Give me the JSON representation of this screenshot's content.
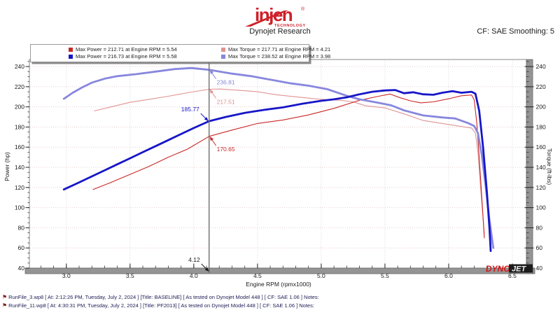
{
  "header": {
    "brand": "injen",
    "brand_reg": "®",
    "brand_sub": "TECHNOLOGY",
    "brand_color": "#ce2129",
    "subtitle": "Dynojet Research",
    "cf_label": "CF: SAE Smoothing: 5"
  },
  "legend": {
    "items": [
      {
        "color": "#c82828",
        "label": "Max Power = 212.71 at Engine RPM = 5.54"
      },
      {
        "color": "#df9393",
        "label": "Max Torque = 217.71 at Engine RPM = 4.21"
      },
      {
        "color": "#1616c8",
        "label": "Max Power = 216.73 at Engine RPM = 5.58"
      },
      {
        "color": "#8787de",
        "label": "Max Torque = 238.52 at Engine RPM = 3.98"
      }
    ]
  },
  "chart_data": {
    "type": "line",
    "xlabel": "Engine RPM (rpmx1000)",
    "ylabel_left": "Power (hp)",
    "ylabel_right": "Torque (ft-lbs)",
    "xlim": [
      2.71,
      6.61
    ],
    "ylim": [
      40,
      247
    ],
    "x_ticks": [
      3.0,
      3.5,
      4.0,
      4.5,
      5.0,
      5.5,
      6.0,
      6.5
    ],
    "x_minor_step": 0.1,
    "y_ticks": [
      40,
      60,
      80,
      100,
      120,
      140,
      160,
      180,
      200,
      220,
      240
    ],
    "y_minor_step": 5,
    "grid": true,
    "legend_position": "top-left",
    "cursor_rpm": 4.12,
    "colors": {
      "grid_h": "#e8cfcf",
      "grid_v": "#d9d9d9",
      "axis_bar": "#949494",
      "cursor": "#6e6e6e"
    },
    "series": [
      {
        "id": "baseline-torque",
        "name": "Baseline Torque",
        "color": "#df9393",
        "width": 1.1,
        "points": [
          [
            3.22,
            196
          ],
          [
            3.35,
            200
          ],
          [
            3.5,
            204.5
          ],
          [
            3.65,
            207.5
          ],
          [
            3.8,
            210.5
          ],
          [
            3.95,
            214
          ],
          [
            4.12,
            217.5
          ],
          [
            4.21,
            217.7
          ],
          [
            4.35,
            216.5
          ],
          [
            4.5,
            215
          ],
          [
            4.65,
            212
          ],
          [
            4.8,
            210
          ],
          [
            5.0,
            207.5
          ],
          [
            5.15,
            206.5
          ],
          [
            5.25,
            205
          ],
          [
            5.35,
            201
          ],
          [
            5.5,
            199
          ],
          [
            5.65,
            193
          ],
          [
            5.8,
            186.5
          ],
          [
            5.95,
            183.5
          ],
          [
            6.1,
            180.5
          ],
          [
            6.18,
            179
          ],
          [
            6.21,
            174
          ],
          [
            6.23,
            155
          ],
          [
            6.25,
            120
          ],
          [
            6.27,
            90
          ],
          [
            6.28,
            74
          ]
        ]
      },
      {
        "id": "baseline-power",
        "name": "Baseline Power",
        "color": "#c82828",
        "width": 1.1,
        "points": [
          [
            3.21,
            118
          ],
          [
            3.35,
            125
          ],
          [
            3.5,
            133
          ],
          [
            3.65,
            141
          ],
          [
            3.8,
            150
          ],
          [
            3.95,
            158
          ],
          [
            4.12,
            170.7
          ],
          [
            4.3,
            177
          ],
          [
            4.5,
            183.5
          ],
          [
            4.7,
            187
          ],
          [
            4.9,
            192
          ],
          [
            5.1,
            198.5
          ],
          [
            5.3,
            206.5
          ],
          [
            5.45,
            210.5
          ],
          [
            5.54,
            212.7
          ],
          [
            5.62,
            209
          ],
          [
            5.7,
            206
          ],
          [
            5.78,
            204
          ],
          [
            5.88,
            205
          ],
          [
            6.0,
            208
          ],
          [
            6.1,
            211
          ],
          [
            6.18,
            211.8
          ],
          [
            6.2,
            207
          ],
          [
            6.22,
            185
          ],
          [
            6.24,
            150
          ],
          [
            6.26,
            110
          ],
          [
            6.28,
            70
          ]
        ]
      },
      {
        "id": "pf2013-torque",
        "name": "PF2013 Torque",
        "color": "#8787de",
        "width": 2.8,
        "points": [
          [
            2.98,
            208
          ],
          [
            3.05,
            214
          ],
          [
            3.12,
            219
          ],
          [
            3.2,
            224
          ],
          [
            3.3,
            228
          ],
          [
            3.4,
            230.5
          ],
          [
            3.55,
            232.5
          ],
          [
            3.7,
            235
          ],
          [
            3.85,
            237.5
          ],
          [
            3.98,
            238.5
          ],
          [
            4.12,
            236.8
          ],
          [
            4.3,
            233
          ],
          [
            4.45,
            230.5
          ],
          [
            4.6,
            227
          ],
          [
            4.75,
            223.5
          ],
          [
            4.9,
            221
          ],
          [
            5.05,
            217.5
          ],
          [
            5.2,
            211
          ],
          [
            5.3,
            207.5
          ],
          [
            5.45,
            204
          ],
          [
            5.55,
            201.5
          ],
          [
            5.65,
            196.5
          ],
          [
            5.8,
            191.5
          ],
          [
            5.95,
            189.5
          ],
          [
            6.05,
            188.5
          ],
          [
            6.15,
            184
          ],
          [
            6.2,
            181
          ],
          [
            6.23,
            174
          ],
          [
            6.26,
            152
          ],
          [
            6.29,
            122
          ],
          [
            6.32,
            88
          ],
          [
            6.35,
            60
          ]
        ]
      },
      {
        "id": "pf2013-power",
        "name": "PF2013 Power",
        "color": "#1616c8",
        "width": 2.8,
        "points": [
          [
            2.98,
            118
          ],
          [
            3.1,
            125
          ],
          [
            3.2,
            131
          ],
          [
            3.3,
            137
          ],
          [
            3.4,
            143
          ],
          [
            3.5,
            149
          ],
          [
            3.6,
            155
          ],
          [
            3.7,
            161
          ],
          [
            3.8,
            167
          ],
          [
            3.9,
            173
          ],
          [
            4.0,
            179
          ],
          [
            4.12,
            185.8
          ],
          [
            4.25,
            190
          ],
          [
            4.4,
            194
          ],
          [
            4.55,
            197
          ],
          [
            4.7,
            199.5
          ],
          [
            4.85,
            203
          ],
          [
            5.0,
            206
          ],
          [
            5.1,
            207.5
          ],
          [
            5.2,
            209.5
          ],
          [
            5.3,
            212.5
          ],
          [
            5.4,
            215
          ],
          [
            5.5,
            216.3
          ],
          [
            5.58,
            216.7
          ],
          [
            5.65,
            213.5
          ],
          [
            5.72,
            214.5
          ],
          [
            5.8,
            212.5
          ],
          [
            5.88,
            212
          ],
          [
            5.95,
            214
          ],
          [
            6.03,
            215.5
          ],
          [
            6.1,
            214
          ],
          [
            6.18,
            215
          ],
          [
            6.21,
            213
          ],
          [
            6.24,
            196
          ],
          [
            6.27,
            160
          ],
          [
            6.3,
            115
          ],
          [
            6.32,
            80
          ],
          [
            6.33,
            57
          ]
        ]
      }
    ],
    "annotations": [
      {
        "text": "236.81",
        "color": "#8787de",
        "rpm": 4.125,
        "val": 236.8,
        "dir": "se"
      },
      {
        "text": "217.51",
        "color": "#df8f8f",
        "rpm": 4.125,
        "val": 217.5,
        "dir": "se"
      },
      {
        "text": "185.77",
        "color": "#1616c8",
        "rpm": 4.115,
        "val": 185.8,
        "dir": "nw"
      },
      {
        "text": "170.65",
        "color": "#c82828",
        "rpm": 4.125,
        "val": 170.6,
        "dir": "se"
      },
      {
        "text": "4.12",
        "color": "#1a1a1a",
        "rpm": 4.12,
        "val": null,
        "dir": "nw"
      }
    ],
    "watermark": {
      "dyno": "DYNO",
      "jet": "JET"
    }
  },
  "footer": {
    "lines": [
      {
        "text": "RunFile_3.wp8 [ At: 2:12:26 PM, Tuesday, July 2, 2024 ] [Title: BASELINE]  [ As tested on Dynojet Model 448 ] [ CF: SAE 1.06 ] Notes:"
      },
      {
        "text": "RunFile_11.wp8 [ At: 4:30:31 PM, Tuesday, July 2, 2024 ] [Title: PF2013]  [ As tested on Dynojet Model 448 ] [ CF: SAE 1.06 ] Notes:"
      }
    ]
  }
}
